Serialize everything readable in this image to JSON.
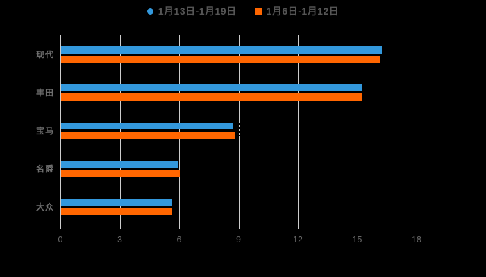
{
  "legend": {
    "items": [
      {
        "label": "1月13日-1月19日",
        "color": "#3398DC",
        "marker": "circle"
      },
      {
        "label": "1月6日-1月12日",
        "color": "#FF6600",
        "marker": "square"
      }
    ]
  },
  "chart_data": {
    "type": "bar",
    "orientation": "horizontal",
    "title": "",
    "xlabel": "",
    "ylabel": "",
    "categories": [
      "现代",
      "丰田",
      "宝马",
      "名爵",
      "大众"
    ],
    "series": [
      {
        "name": "1月13日-1月19日",
        "color": "#3398DC",
        "values": [
          16.2,
          15.2,
          8.7,
          5.9,
          5.6
        ]
      },
      {
        "name": "1月6日-1月12日",
        "color": "#FF6600",
        "values": [
          16.1,
          15.2,
          8.8,
          6.0,
          5.6
        ]
      }
    ],
    "x_ticks": [
      0,
      3,
      6,
      9,
      12,
      15,
      18
    ],
    "xlim": [
      0,
      18
    ],
    "grid": true,
    "legend_position": "top"
  },
  "style": {
    "background": "#000000",
    "gridline_color": "#CCCCCC",
    "axis_line_color": "#999999",
    "x_tick_label_color": "#666666",
    "y_label_color": "#6E6E6E",
    "legend_text_color": "#555555"
  }
}
